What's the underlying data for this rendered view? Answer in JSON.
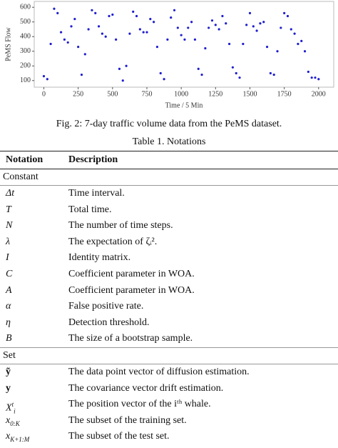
{
  "chart_data": {
    "type": "scatter",
    "ylabel": "PeMS Flow",
    "xlabel": "Time / 5 Min",
    "color": "#1f1fcf",
    "xlim": [
      -70,
      2110
    ],
    "ylim": [
      55,
      640
    ],
    "xticks": [
      0,
      250,
      500,
      750,
      1000,
      1250,
      1500,
      1750,
      2000
    ],
    "yticks": [
      100,
      200,
      300,
      400,
      500,
      600
    ],
    "x": [
      0,
      25,
      50,
      75,
      100,
      125,
      150,
      175,
      200,
      225,
      250,
      275,
      300,
      325,
      350,
      375,
      400,
      425,
      450,
      475,
      500,
      525,
      550,
      575,
      600,
      625,
      650,
      675,
      700,
      725,
      750,
      775,
      800,
      825,
      850,
      875,
      900,
      925,
      950,
      975,
      1000,
      1025,
      1050,
      1075,
      1100,
      1125,
      1150,
      1175,
      1200,
      1225,
      1250,
      1275,
      1300,
      1325,
      1350,
      1375,
      1400,
      1425,
      1450,
      1475,
      1500,
      1525,
      1550,
      1575,
      1600,
      1625,
      1650,
      1675,
      1700,
      1725,
      1750,
      1775,
      1800,
      1825,
      1850,
      1875,
      1900,
      1925,
      1950,
      1975,
      2000
    ],
    "values": [
      130,
      110,
      350,
      590,
      560,
      430,
      380,
      360,
      470,
      520,
      330,
      140,
      280,
      450,
      580,
      560,
      470,
      420,
      400,
      540,
      550,
      380,
      180,
      100,
      200,
      420,
      570,
      540,
      450,
      430,
      430,
      520,
      500,
      330,
      150,
      110,
      380,
      530,
      580,
      460,
      410,
      380,
      460,
      500,
      380,
      180,
      140,
      320,
      460,
      510,
      480,
      450,
      540,
      490,
      350,
      190,
      150,
      120,
      350,
      480,
      560,
      470,
      440,
      490,
      500,
      330,
      150,
      140,
      300,
      460,
      560,
      540,
      450,
      420,
      350,
      370,
      300,
      160,
      120,
      120,
      110
    ]
  },
  "caption": "Fig. 2: 7-day traffic volume data from the PeMS dataset.",
  "table": {
    "title": "Table 1. Notations",
    "columns": [
      "Notation",
      "Description"
    ],
    "sections": [
      {
        "name": "Constant",
        "rows": [
          {
            "notation": {
              "base": "Δt"
            },
            "description": "Time interval."
          },
          {
            "notation": {
              "base": "T"
            },
            "description": "Total time."
          },
          {
            "notation": {
              "base": "N"
            },
            "description": "The number of time steps."
          },
          {
            "notation": {
              "base": "λ"
            },
            "description": "The expectation of ζᵢ²."
          },
          {
            "notation": {
              "base": "I"
            },
            "description": "Identity matrix."
          },
          {
            "notation": {
              "base": "C"
            },
            "description": "Coefficient parameter in WOA."
          },
          {
            "notation": {
              "base": "A"
            },
            "description": "Coefficient parameter in WOA."
          },
          {
            "notation": {
              "base": "α"
            },
            "description": "False positive rate."
          },
          {
            "notation": {
              "base": "η"
            },
            "description": "Detection threshold."
          },
          {
            "notation": {
              "base": "B"
            },
            "description": "The size of a bootstrap sample."
          }
        ]
      },
      {
        "name": "Set",
        "rows": [
          {
            "notation": {
              "base": "ỹ",
              "bold": true
            },
            "description": "The data point vector of diffusion estimation."
          },
          {
            "notation": {
              "base": "y",
              "bold": true
            },
            "description": "The covariance vector drift estimation."
          },
          {
            "notation": {
              "base": "X",
              "sub": "i",
              "sup": "t"
            },
            "description": "The position vector of the iᵗʰ whale."
          },
          {
            "notation": {
              "base": "x",
              "sub": "0:K"
            },
            "description": "The subset of the training set."
          },
          {
            "notation": {
              "base": "x",
              "sub": "K+1:M"
            },
            "description": "The subset of the test set."
          }
        ]
      }
    ]
  }
}
